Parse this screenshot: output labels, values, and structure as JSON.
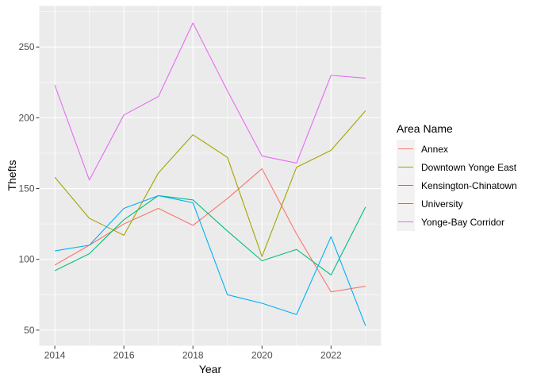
{
  "chart_data": {
    "type": "line",
    "title": "",
    "xlabel": "Year",
    "ylabel": "Thefts",
    "xlim": [
      2013.55,
      2023.45
    ],
    "ylim": [
      39,
      279
    ],
    "x_ticks": [
      2014,
      2016,
      2018,
      2020,
      2022
    ],
    "y_ticks": [
      50,
      100,
      150,
      200,
      250
    ],
    "grid": true,
    "legend_title": "Area Name",
    "legend_position": "right",
    "x": [
      2014,
      2015,
      2016,
      2017,
      2018,
      2019,
      2020,
      2021,
      2022,
      2023
    ],
    "series": [
      {
        "name": "Annex",
        "color": "#F8766D",
        "values": [
          96,
          110,
          125,
          136,
          124,
          143,
          164,
          118,
          77,
          81
        ]
      },
      {
        "name": "Downtown Yonge East",
        "color": "#A3A500",
        "values": [
          158,
          129,
          117,
          161,
          188,
          172,
          102,
          165,
          177,
          205
        ]
      },
      {
        "name": "Kensington-Chinatown",
        "color": "#00BF7D",
        "values": [
          92,
          104,
          128,
          145,
          142,
          120,
          99,
          107,
          89,
          137
        ]
      },
      {
        "name": "University",
        "color": "#00B0F6",
        "values": [
          106,
          110,
          136,
          145,
          140,
          75,
          69,
          61,
          116,
          53
        ]
      },
      {
        "name": "Yonge-Bay Corridor",
        "color": "#E76BF3",
        "values": [
          223,
          156,
          202,
          215,
          267,
          219,
          173,
          168,
          230,
          228
        ]
      }
    ]
  }
}
